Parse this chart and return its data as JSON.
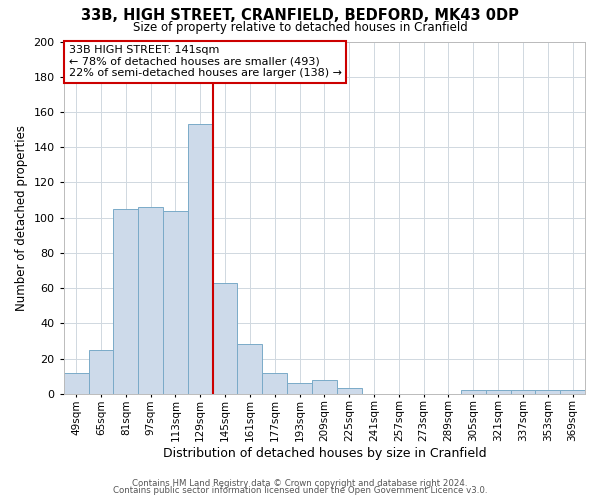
{
  "title": "33B, HIGH STREET, CRANFIELD, BEDFORD, MK43 0DP",
  "subtitle": "Size of property relative to detached houses in Cranfield",
  "xlabel": "Distribution of detached houses by size in Cranfield",
  "ylabel": "Number of detached properties",
  "bar_color": "#cddaea",
  "bar_edge_color": "#7aaac8",
  "categories": [
    "49sqm",
    "65sqm",
    "81sqm",
    "97sqm",
    "113sqm",
    "129sqm",
    "145sqm",
    "161sqm",
    "177sqm",
    "193sqm",
    "209sqm",
    "225sqm",
    "241sqm",
    "257sqm",
    "273sqm",
    "289sqm",
    "305sqm",
    "321sqm",
    "337sqm",
    "353sqm",
    "369sqm"
  ],
  "values": [
    12,
    25,
    105,
    106,
    104,
    153,
    63,
    28,
    12,
    6,
    8,
    3,
    0,
    0,
    0,
    0,
    2,
    2,
    2,
    2,
    2
  ],
  "ylim": [
    0,
    200
  ],
  "yticks": [
    0,
    20,
    40,
    60,
    80,
    100,
    120,
    140,
    160,
    180,
    200
  ],
  "vline_x": 6.0,
  "vline_color": "#cc0000",
  "annotation_title": "33B HIGH STREET: 141sqm",
  "annotation_line1": "← 78% of detached houses are smaller (493)",
  "annotation_line2": "22% of semi-detached houses are larger (138) →",
  "annotation_box_color": "#ffffff",
  "annotation_box_edge": "#cc0000",
  "footer1": "Contains HM Land Registry data © Crown copyright and database right 2024.",
  "footer2": "Contains public sector information licensed under the Open Government Licence v3.0.",
  "background_color": "#ffffff",
  "grid_color": "#d0d8e0"
}
